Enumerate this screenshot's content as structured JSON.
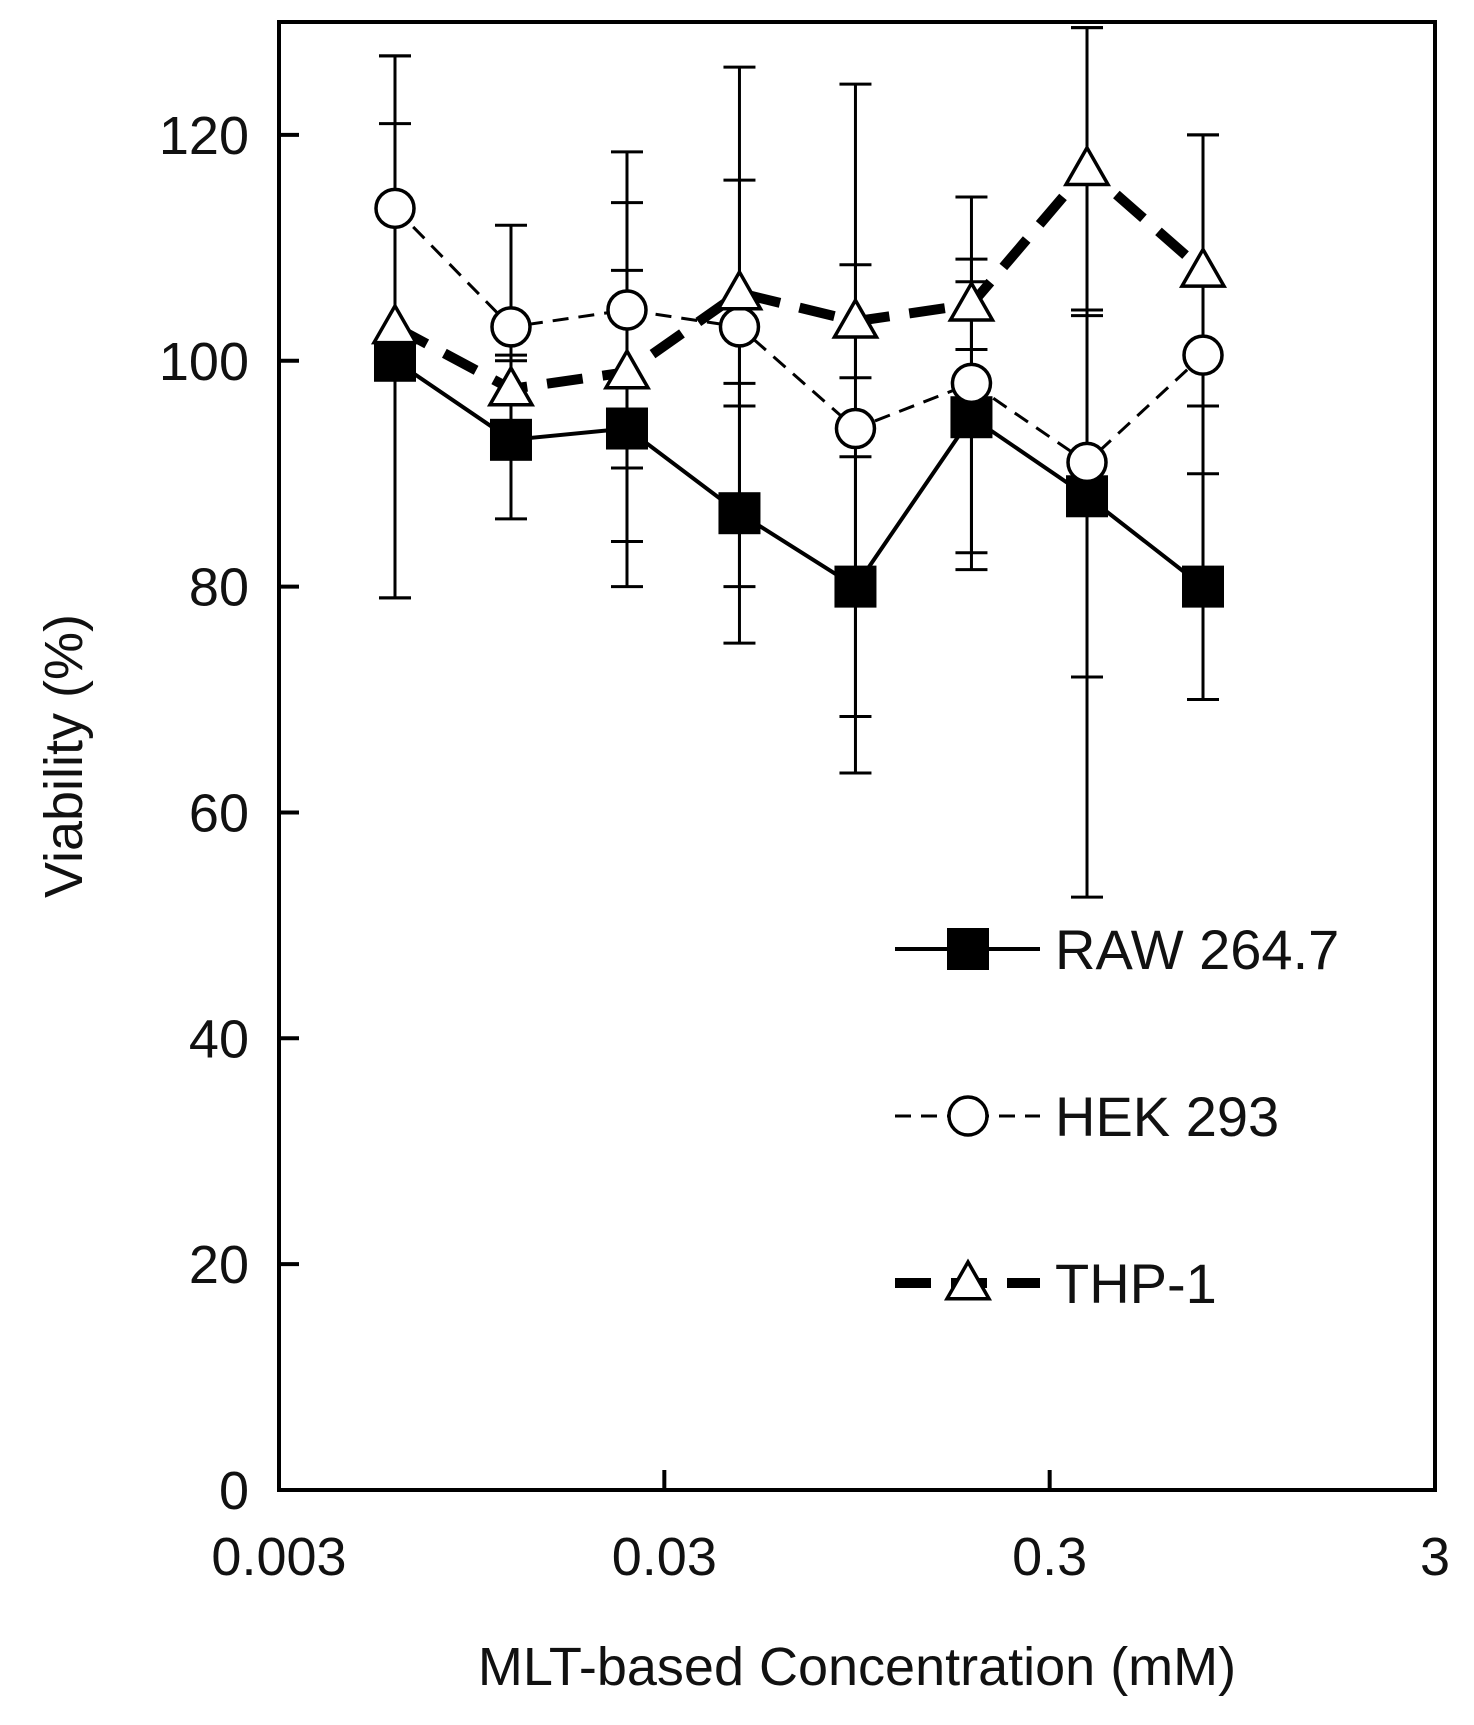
{
  "chart_data": {
    "type": "line",
    "title": "",
    "xlabel": "MLT-based Concentration (mM)",
    "ylabel": "Viability (%)",
    "xscale": "log",
    "xlim": [
      0.003,
      3
    ],
    "ylim": [
      0,
      130
    ],
    "x_ticks": [
      0.003,
      0.03,
      0.3,
      3
    ],
    "x_tick_labels": [
      "0.003",
      "0.03",
      "0.3",
      "3"
    ],
    "y_ticks": [
      0,
      20,
      40,
      60,
      80,
      100,
      120
    ],
    "y_tick_labels": [
      "0",
      "20",
      "40",
      "60",
      "80",
      "100",
      "120"
    ],
    "grid": false,
    "legend_position": "right",
    "x": [
      0.006,
      0.012,
      0.024,
      0.047,
      0.094,
      0.188,
      0.375,
      0.75
    ],
    "series": [
      {
        "name": "RAW 264.7",
        "marker": "filled-square",
        "line_style": "solid",
        "color": "#000000",
        "values": [
          100.0,
          93.0,
          94.0,
          86.5,
          80.0,
          95.0,
          88.0,
          80.0
        ],
        "errors": [
          21.0,
          7.0,
          14.0,
          11.5,
          11.5,
          12.0,
          16.0,
          10.0
        ]
      },
      {
        "name": "HEK 293",
        "marker": "open-circle",
        "line_style": "dashed",
        "color": "#000000",
        "values": [
          113.5,
          103.0,
          104.5,
          103.0,
          94.0,
          98.0,
          91.0,
          100.5
        ],
        "errors": [
          13.5,
          9.0,
          14.0,
          23.0,
          30.5,
          16.5,
          38.5,
          19.5
        ]
      },
      {
        "name": "THP-1",
        "marker": "open-triangle",
        "line_style": "thick-dashed",
        "color": "#000000",
        "values": [
          103.0,
          97.5,
          99.0,
          106.0,
          103.5,
          105.0,
          117.0,
          108.0
        ],
        "errors": [
          24.0,
          3.0,
          15.0,
          10.0,
          5.0,
          4.0,
          12.5,
          12.0
        ]
      }
    ]
  }
}
